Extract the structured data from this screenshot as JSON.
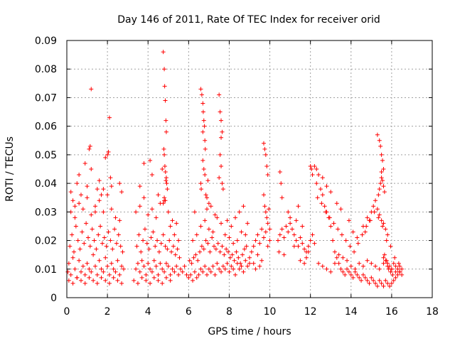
{
  "chart_data": {
    "type": "scatter",
    "title": "Day 146 of 2011, Rate Of TEC Index for receiver orid",
    "xlabel": "GPS time / hours",
    "ylabel": "ROTI / TECUs",
    "xlim": [
      0,
      18
    ],
    "ylim": [
      0,
      0.09
    ],
    "xticks": [
      0,
      2,
      4,
      6,
      8,
      10,
      12,
      14,
      16,
      18
    ],
    "yticks": [
      0,
      0.01,
      0.02,
      0.03,
      0.04,
      0.05,
      0.06,
      0.07,
      0.08,
      0.09
    ],
    "xtick_labels": [
      "0",
      "2",
      "4",
      "6",
      "8",
      "10",
      "12",
      "14",
      "16",
      "18"
    ],
    "ytick_labels": [
      "0",
      "0.01",
      "0.02",
      "0.03",
      "0.04",
      "0.05",
      "0.06",
      "0.07",
      "0.08",
      "0.09"
    ],
    "grid": true,
    "marker": "+",
    "color": "#ff0000",
    "series": [
      {
        "x": [
          0.05,
          0.1,
          0.2,
          0.3,
          0.4,
          0.5,
          0.6,
          0.7,
          0.8,
          0.9,
          1.0,
          1.1,
          1.2,
          1.3,
          1.4,
          1.5,
          1.6,
          1.7,
          1.8,
          1.9,
          2.0,
          2.1,
          2.2,
          2.3,
          2.4,
          2.5,
          2.6,
          2.7,
          2.8,
          0.15,
          0.25,
          0.35,
          0.45,
          0.55,
          0.65,
          0.75,
          0.85,
          0.95,
          1.05,
          1.15,
          1.25,
          1.35,
          1.45,
          1.55,
          1.65,
          1.75,
          1.85,
          1.95,
          2.05,
          2.15,
          2.25,
          2.35,
          2.45,
          2.55,
          2.65,
          2.75,
          0.2,
          0.4,
          0.6,
          0.8,
          1.0,
          1.2,
          1.4,
          1.6,
          1.8,
          2.0,
          2.2,
          2.4,
          2.6,
          0.1,
          0.3,
          0.5,
          0.7,
          0.9,
          1.1,
          1.3,
          1.5,
          1.7,
          1.9,
          2.1,
          2.3,
          2.5,
          2.7,
          0.5,
          0.6,
          0.9,
          1.0,
          1.1,
          1.15,
          1.2,
          1.5,
          1.6,
          1.7,
          1.9,
          2.0,
          2.05,
          2.1,
          2.15,
          2.6,
          2.7,
          0.2,
          0.3,
          0.4,
          0.7,
          1.2,
          1.4,
          1.8,
          2.2,
          3.4,
          3.5,
          3.6,
          3.7,
          3.8,
          3.9,
          4.0,
          4.1,
          4.2,
          4.3,
          4.4,
          4.5,
          4.6,
          4.7,
          4.8,
          4.9,
          5.0,
          5.1,
          5.2,
          5.3,
          5.4,
          5.5,
          5.6,
          5.7,
          5.8,
          5.9,
          3.45,
          3.55,
          3.65,
          3.75,
          3.85,
          3.95,
          4.05,
          4.15,
          4.25,
          4.35,
          4.45,
          4.55,
          4.65,
          4.75,
          4.85,
          4.95,
          5.05,
          5.15,
          5.25,
          5.35,
          5.45,
          5.55,
          3.4,
          3.6,
          3.8,
          4.0,
          4.2,
          4.4,
          4.6,
          4.8,
          5.0,
          5.2,
          5.4,
          3.3,
          3.5,
          3.7,
          3.9,
          4.1,
          4.3,
          4.5,
          4.7,
          4.9,
          5.1,
          4.75,
          4.8,
          4.82,
          4.85,
          4.88,
          4.9,
          4.78,
          4.8,
          4.83,
          4.86,
          4.9,
          4.92,
          4.95,
          4.8,
          4.85,
          4.75,
          4.7,
          4.88,
          3.6,
          3.8,
          4.1,
          4.2,
          4.5,
          5.1,
          5.3,
          5.5,
          6.0,
          6.1,
          6.2,
          6.3,
          6.4,
          6.5,
          6.6,
          6.7,
          6.8,
          6.9,
          7.0,
          7.1,
          7.2,
          7.3,
          7.4,
          7.5,
          7.6,
          7.7,
          7.8,
          7.9,
          8.0,
          8.1,
          8.2,
          8.3,
          8.4,
          8.5,
          8.6,
          8.7,
          8.8,
          8.9,
          9.0,
          6.05,
          6.15,
          6.25,
          6.35,
          6.45,
          6.55,
          6.65,
          6.75,
          6.85,
          6.95,
          7.05,
          7.15,
          7.25,
          7.35,
          7.45,
          7.55,
          7.65,
          7.75,
          7.85,
          7.95,
          8.05,
          8.15,
          8.25,
          8.35,
          8.45,
          8.55,
          8.65,
          8.75,
          8.85,
          6.2,
          6.4,
          6.6,
          6.8,
          7.0,
          7.2,
          7.4,
          7.6,
          7.8,
          8.0,
          8.2,
          8.4,
          8.6,
          8.8,
          6.6,
          6.65,
          6.7,
          6.72,
          6.75,
          6.78,
          6.8,
          6.82,
          6.7,
          6.75,
          6.8,
          6.6,
          6.62,
          6.85,
          6.9,
          7.0,
          7.1,
          6.7,
          6.95,
          7.5,
          7.55,
          7.6,
          7.65,
          7.6,
          7.55,
          7.6,
          7.5,
          7.65,
          7.7,
          6.3,
          6.9,
          7.3,
          7.9,
          8.1,
          8.3,
          8.5,
          8.7,
          8.9,
          9.0,
          9.1,
          9.2,
          9.3,
          9.4,
          9.5,
          9.6,
          9.7,
          9.8,
          9.9,
          10.0,
          9.7,
          9.75,
          9.8,
          9.85,
          9.9,
          9.7,
          9.75,
          9.8,
          9.85,
          9.9,
          9.95,
          10.0,
          9.2,
          9.4,
          9.6,
          9.3,
          9.5,
          10.4,
          10.5,
          10.6,
          10.7,
          10.8,
          10.9,
          11.0,
          11.1,
          11.2,
          11.3,
          11.4,
          11.5,
          11.6,
          11.7,
          11.8,
          11.9,
          12.0,
          12.1,
          12.2,
          10.5,
          10.55,
          10.6,
          10.9,
          11.0,
          11.3,
          11.4,
          11.6,
          11.8,
          12.0,
          12.05,
          12.1,
          10.45,
          10.7,
          11.2,
          11.5,
          11.7,
          11.9,
          12.3,
          12.4,
          12.5,
          12.6,
          12.7,
          12.8,
          12.9,
          13.0,
          13.1,
          13.2,
          13.3,
          13.4,
          13.5,
          13.6,
          13.7,
          13.8,
          13.9,
          14.0,
          14.1,
          14.2,
          14.3,
          14.4,
          14.5,
          14.6,
          14.7,
          14.8,
          14.9,
          15.0,
          15.1,
          15.2,
          15.3,
          15.4,
          15.5,
          15.6,
          15.7,
          15.8,
          15.9,
          16.0,
          16.1,
          16.2,
          16.3,
          16.4,
          16.5,
          12.35,
          12.55,
          12.75,
          12.95,
          13.15,
          13.35,
          13.55,
          13.75,
          13.95,
          14.15,
          14.35,
          14.55,
          14.75,
          14.95,
          15.15,
          15.35,
          15.55,
          15.75,
          15.95,
          16.15,
          16.35,
          12.4,
          12.6,
          12.8,
          13.0,
          13.2,
          13.4,
          13.6,
          13.8,
          14.0,
          14.2,
          14.4,
          14.6,
          14.8,
          15.0,
          15.2,
          15.4,
          15.6,
          15.8,
          16.0,
          16.2,
          16.4,
          15.3,
          15.4,
          15.45,
          15.5,
          15.55,
          15.6,
          15.5,
          15.45,
          15.4,
          15.35,
          15.5,
          15.55,
          15.6,
          15.65,
          14.6,
          14.8,
          15.0,
          15.1,
          15.2,
          15.3,
          15.4,
          15.5,
          15.6,
          15.7,
          15.8,
          14.7,
          14.9,
          12.2,
          12.3,
          12.6,
          12.8,
          13.0,
          13.3,
          13.5,
          13.9,
          14.1,
          14.3,
          15.6,
          15.7,
          15.8,
          15.9,
          16.0,
          16.1,
          16.2,
          16.3,
          16.4,
          16.5,
          15.65,
          15.75,
          15.85,
          15.95,
          16.05
        ],
        "y": [
          0.009,
          0.012,
          0.008,
          0.014,
          0.01,
          0.007,
          0.013,
          0.009,
          0.011,
          0.008,
          0.012,
          0.01,
          0.009,
          0.015,
          0.011,
          0.008,
          0.013,
          0.01,
          0.009,
          0.014,
          0.011,
          0.008,
          0.012,
          0.01,
          0.009,
          0.013,
          0.008,
          0.011,
          0.01,
          0.018,
          0.022,
          0.016,
          0.025,
          0.02,
          0.017,
          0.023,
          0.019,
          0.026,
          0.021,
          0.018,
          0.024,
          0.02,
          0.017,
          0.022,
          0.025,
          0.019,
          0.021,
          0.018,
          0.023,
          0.02,
          0.017,
          0.024,
          0.019,
          0.022,
          0.018,
          0.016,
          0.03,
          0.028,
          0.033,
          0.031,
          0.035,
          0.029,
          0.032,
          0.034,
          0.03,
          0.036,
          0.031,
          0.028,
          0.027,
          0.006,
          0.005,
          0.007,
          0.006,
          0.005,
          0.007,
          0.006,
          0.005,
          0.007,
          0.006,
          0.005,
          0.007,
          0.006,
          0.005,
          0.04,
          0.043,
          0.047,
          0.039,
          0.052,
          0.053,
          0.045,
          0.038,
          0.041,
          0.036,
          0.049,
          0.05,
          0.051,
          0.063,
          0.042,
          0.04,
          0.037,
          0.037,
          0.034,
          0.032,
          0.036,
          0.073,
          0.03,
          0.038,
          0.039,
          0.01,
          0.012,
          0.009,
          0.013,
          0.011,
          0.008,
          0.012,
          0.01,
          0.009,
          0.013,
          0.011,
          0.008,
          0.012,
          0.01,
          0.009,
          0.012,
          0.011,
          0.008,
          0.01,
          0.009,
          0.011,
          0.008,
          0.01,
          0.009,
          0.011,
          0.008,
          0.018,
          0.022,
          0.016,
          0.02,
          0.024,
          0.019,
          0.017,
          0.021,
          0.023,
          0.018,
          0.02,
          0.016,
          0.019,
          0.022,
          0.018,
          0.017,
          0.02,
          0.016,
          0.018,
          0.015,
          0.017,
          0.014,
          0.03,
          0.032,
          0.035,
          0.029,
          0.031,
          0.028,
          0.033,
          0.034,
          0.03,
          0.027,
          0.026,
          0.006,
          0.005,
          0.007,
          0.006,
          0.005,
          0.007,
          0.006,
          0.005,
          0.007,
          0.006,
          0.086,
          0.08,
          0.074,
          0.069,
          0.062,
          0.058,
          0.052,
          0.05,
          0.046,
          0.044,
          0.042,
          0.04,
          0.038,
          0.035,
          0.034,
          0.033,
          0.045,
          0.041,
          0.039,
          0.047,
          0.048,
          0.043,
          0.036,
          0.025,
          0.022,
          0.02,
          0.007,
          0.008,
          0.006,
          0.009,
          0.007,
          0.008,
          0.01,
          0.009,
          0.011,
          0.008,
          0.01,
          0.009,
          0.011,
          0.008,
          0.012,
          0.01,
          0.009,
          0.011,
          0.01,
          0.012,
          0.009,
          0.011,
          0.01,
          0.008,
          0.012,
          0.01,
          0.011,
          0.009,
          0.013,
          0.011,
          0.012,
          0.013,
          0.012,
          0.014,
          0.015,
          0.013,
          0.016,
          0.018,
          0.017,
          0.02,
          0.019,
          0.016,
          0.021,
          0.018,
          0.017,
          0.019,
          0.016,
          0.018,
          0.015,
          0.017,
          0.016,
          0.014,
          0.015,
          0.013,
          0.016,
          0.014,
          0.012,
          0.015,
          0.017,
          0.018,
          0.02,
          0.022,
          0.025,
          0.027,
          0.024,
          0.023,
          0.028,
          0.026,
          0.022,
          0.021,
          0.019,
          0.02,
          0.023,
          0.022,
          0.073,
          0.071,
          0.068,
          0.065,
          0.062,
          0.06,
          0.055,
          0.052,
          0.048,
          0.045,
          0.043,
          0.04,
          0.038,
          0.036,
          0.035,
          0.033,
          0.032,
          0.058,
          0.041,
          0.071,
          0.065,
          0.062,
          0.058,
          0.056,
          0.05,
          0.046,
          0.042,
          0.04,
          0.038,
          0.03,
          0.031,
          0.029,
          0.027,
          0.025,
          0.028,
          0.03,
          0.032,
          0.026,
          0.014,
          0.016,
          0.018,
          0.02,
          0.022,
          0.019,
          0.024,
          0.021,
          0.023,
          0.018,
          0.02,
          0.054,
          0.052,
          0.05,
          0.046,
          0.043,
          0.036,
          0.032,
          0.03,
          0.028,
          0.026,
          0.031,
          0.024,
          0.012,
          0.015,
          0.013,
          0.01,
          0.011,
          0.02,
          0.022,
          0.024,
          0.021,
          0.025,
          0.023,
          0.026,
          0.024,
          0.022,
          0.02,
          0.018,
          0.021,
          0.019,
          0.017,
          0.016,
          0.018,
          0.02,
          0.022,
          0.019,
          0.044,
          0.04,
          0.035,
          0.03,
          0.028,
          0.027,
          0.032,
          0.025,
          0.014,
          0.046,
          0.045,
          0.043,
          0.016,
          0.015,
          0.018,
          0.013,
          0.012,
          0.016,
          0.04,
          0.043,
          0.038,
          0.036,
          0.032,
          0.03,
          0.028,
          0.025,
          0.02,
          0.016,
          0.014,
          0.012,
          0.01,
          0.009,
          0.008,
          0.01,
          0.009,
          0.008,
          0.007,
          0.009,
          0.008,
          0.007,
          0.006,
          0.008,
          0.007,
          0.006,
          0.005,
          0.007,
          0.006,
          0.005,
          0.004,
          0.006,
          0.005,
          0.004,
          0.006,
          0.005,
          0.004,
          0.005,
          0.006,
          0.007,
          0.008,
          0.009,
          0.01,
          0.035,
          0.033,
          0.03,
          0.028,
          0.026,
          0.024,
          0.022,
          0.02,
          0.018,
          0.016,
          0.019,
          0.022,
          0.025,
          0.027,
          0.03,
          0.028,
          0.025,
          0.02,
          0.018,
          0.014,
          0.012,
          0.012,
          0.011,
          0.01,
          0.009,
          0.012,
          0.015,
          0.014,
          0.013,
          0.011,
          0.01,
          0.012,
          0.011,
          0.013,
          0.012,
          0.011,
          0.01,
          0.012,
          0.011,
          0.01,
          0.009,
          0.011,
          0.057,
          0.055,
          0.053,
          0.05,
          0.048,
          0.045,
          0.042,
          0.04,
          0.038,
          0.036,
          0.044,
          0.041,
          0.039,
          0.037,
          0.025,
          0.028,
          0.03,
          0.032,
          0.034,
          0.031,
          0.029,
          0.027,
          0.026,
          0.024,
          0.022,
          0.023,
          0.027,
          0.046,
          0.045,
          0.042,
          0.039,
          0.037,
          0.033,
          0.031,
          0.027,
          0.023,
          0.021,
          0.014,
          0.013,
          0.012,
          0.011,
          0.01,
          0.012,
          0.011,
          0.01,
          0.009,
          0.008,
          0.015,
          0.013,
          0.01,
          0.009,
          0.008
        ]
      }
    ]
  }
}
